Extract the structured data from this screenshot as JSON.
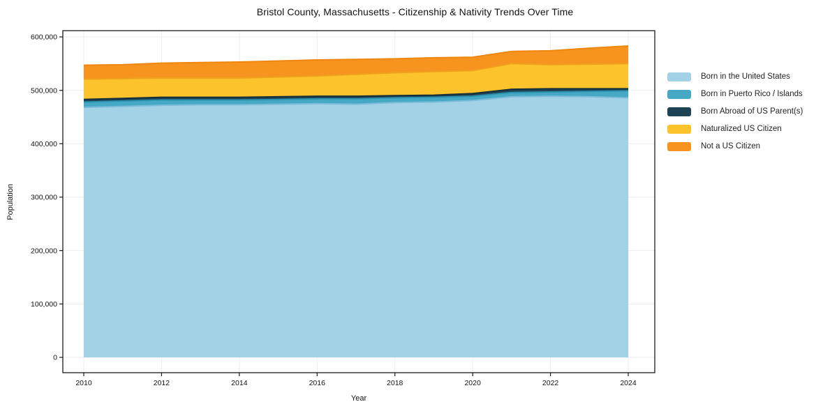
{
  "chart_data": {
    "type": "area",
    "stacked": true,
    "title": "Bristol County, Massachusetts - Citizenship & Nativity Trends Over Time",
    "xlabel": "Year",
    "ylabel": "Population",
    "x": [
      2010,
      2011,
      2012,
      2013,
      2014,
      2015,
      2016,
      2017,
      2018,
      2019,
      2020,
      2021,
      2022,
      2023,
      2024
    ],
    "series": [
      {
        "key": "born-us",
        "name": "Born in the United States",
        "color": "#a3d2e7",
        "edge": "#7cbcd9",
        "values": [
          468000,
          470000,
          472000,
          473000,
          473000,
          474000,
          475000,
          474000,
          477000,
          478000,
          481000,
          488000,
          489000,
          488000,
          486000
        ]
      },
      {
        "key": "born-pr",
        "name": "Born in Puerto Rico / Islands",
        "color": "#45a9c5",
        "edge": "#2b92b0",
        "values": [
          10000,
          10000,
          10000,
          9000,
          9000,
          9000,
          9000,
          10000,
          9000,
          9000,
          8000,
          8000,
          8000,
          10000,
          13000
        ]
      },
      {
        "key": "born-abroad",
        "name": "Born Abroad of US Parent(s)",
        "color": "#1d4354",
        "edge": "#152f3b",
        "values": [
          5000,
          5000,
          5000,
          5000,
          5000,
          5000,
          5000,
          5000,
          4000,
          4000,
          5000,
          6000,
          6000,
          5000,
          4000
        ]
      },
      {
        "key": "naturalized",
        "name": "Naturalized US Citizen",
        "color": "#fdc32d",
        "edge": "#efa11c",
        "values": [
          38000,
          37000,
          36000,
          36000,
          36000,
          37000,
          38000,
          41000,
          43000,
          44000,
          43000,
          48000,
          45000,
          46000,
          47000
        ]
      },
      {
        "key": "not-citizen",
        "name": "Not a US Citizen",
        "color": "#f7941f",
        "edge": "#ee860f",
        "values": [
          26000,
          26000,
          28000,
          29000,
          30000,
          30000,
          30000,
          28000,
          26000,
          26000,
          25000,
          23000,
          26000,
          30000,
          33000
        ]
      }
    ],
    "xticks": [
      2010,
      2012,
      2014,
      2016,
      2018,
      2020,
      2022,
      2024
    ],
    "yticks": [
      0,
      100000,
      200000,
      300000,
      400000,
      500000,
      600000
    ],
    "ytick_labels": [
      "0",
      "100,000",
      "200,000",
      "300,000",
      "400,000",
      "500,000",
      "600,000"
    ],
    "xlim": [
      2009.45,
      2024.68
    ],
    "ylim": [
      -28000,
      612000
    ],
    "grid": true,
    "grid_color": "#ededed",
    "spine_color": "#1a1a1a",
    "legend_position": "right"
  }
}
